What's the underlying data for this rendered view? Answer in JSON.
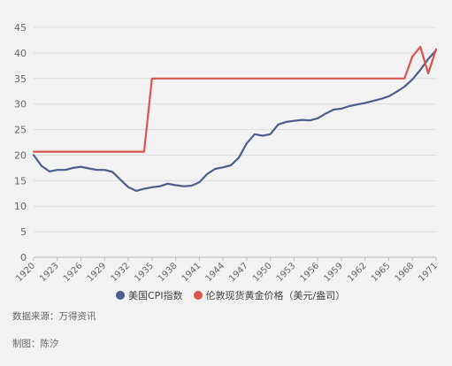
{
  "chart_data": {
    "type": "line",
    "x": [
      1920,
      1921,
      1922,
      1923,
      1924,
      1925,
      1926,
      1927,
      1928,
      1929,
      1930,
      1931,
      1932,
      1933,
      1934,
      1935,
      1936,
      1937,
      1938,
      1939,
      1940,
      1941,
      1942,
      1943,
      1944,
      1945,
      1946,
      1947,
      1948,
      1949,
      1950,
      1951,
      1952,
      1953,
      1954,
      1955,
      1956,
      1957,
      1958,
      1959,
      1960,
      1961,
      1962,
      1963,
      1964,
      1965,
      1966,
      1967,
      1968,
      1969,
      1970,
      1971
    ],
    "xticks": [
      1920,
      1923,
      1926,
      1929,
      1932,
      1935,
      1938,
      1941,
      1944,
      1947,
      1950,
      1953,
      1956,
      1959,
      1962,
      1965,
      1968,
      1971
    ],
    "ylim": [
      0,
      45
    ],
    "yticks": [
      0,
      5,
      10,
      15,
      20,
      25,
      30,
      35,
      40,
      45
    ],
    "grid": "horizontal",
    "legend_position": "bottom",
    "series": [
      {
        "name": "美国CPI指数",
        "color": "#4f5d8a",
        "values": [
          20.0,
          17.9,
          16.8,
          17.1,
          17.1,
          17.5,
          17.7,
          17.4,
          17.1,
          17.1,
          16.7,
          15.2,
          13.7,
          13.0,
          13.4,
          13.7,
          13.9,
          14.4,
          14.1,
          13.9,
          14.0,
          14.7,
          16.3,
          17.3,
          17.6,
          18.0,
          19.5,
          22.3,
          24.1,
          23.8,
          24.1,
          26.0,
          26.5,
          26.7,
          26.9,
          26.8,
          27.2,
          28.1,
          28.9,
          29.1,
          29.6,
          29.9,
          30.2,
          30.6,
          31.0,
          31.5,
          32.4,
          33.4,
          34.8,
          36.7,
          38.8,
          40.5
        ]
      },
      {
        "name": "伦敦现货黄金价格（美元/盎司）",
        "color": "#d9534f",
        "values": [
          20.67,
          20.67,
          20.67,
          20.67,
          20.67,
          20.67,
          20.67,
          20.67,
          20.67,
          20.67,
          20.67,
          20.67,
          20.67,
          20.67,
          20.67,
          35.0,
          35.0,
          35.0,
          35.0,
          35.0,
          35.0,
          35.0,
          35.0,
          35.0,
          35.0,
          35.0,
          35.0,
          35.0,
          35.0,
          35.0,
          35.0,
          35.0,
          35.0,
          35.0,
          35.0,
          35.0,
          35.0,
          35.0,
          35.0,
          35.0,
          35.0,
          35.0,
          35.0,
          35.0,
          35.0,
          35.0,
          35.0,
          35.0,
          39.3,
          41.2,
          36.0,
          40.7
        ]
      }
    ]
  },
  "footnotes": {
    "source": "数据来源：万得资讯",
    "author": "制图：陈汐"
  }
}
